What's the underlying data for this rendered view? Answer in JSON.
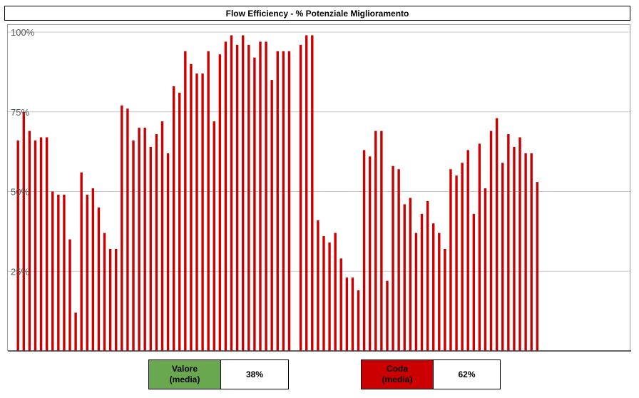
{
  "chart_data": {
    "type": "bar",
    "title": "Flow Efficiency - % Potenziale Miglioramento",
    "ylim": [
      0,
      100
    ],
    "y_ticks": [
      {
        "value": 100,
        "label": "100%"
      },
      {
        "value": 75,
        "label": "75%"
      },
      {
        "value": 50,
        "label": "50%"
      },
      {
        "value": 25,
        "label": "25%"
      }
    ],
    "grid": true,
    "bar_color": "#cc0000",
    "values": [
      66,
      75,
      69,
      66,
      67,
      67,
      50,
      49,
      49,
      35,
      12,
      56,
      49,
      51,
      45,
      37,
      32,
      32,
      77,
      76,
      66,
      70,
      70,
      64,
      68,
      72,
      62,
      83,
      81,
      94,
      90,
      87,
      87,
      94,
      72,
      93,
      97,
      99,
      96,
      99,
      96,
      92,
      97,
      97,
      85,
      94,
      94,
      94,
      null,
      96,
      99,
      99,
      41,
      36,
      34,
      37,
      29,
      23,
      23,
      19,
      63,
      61,
      69,
      69,
      22,
      58,
      57,
      46,
      48,
      37,
      43,
      47,
      40,
      37,
      32,
      57,
      55,
      59,
      63,
      43,
      65,
      51,
      69,
      73,
      59,
      68,
      64,
      67,
      62,
      62,
      53
    ]
  },
  "legend": {
    "valore": {
      "label": "Valore\n(media)",
      "value": "38%",
      "color": "#6aa84f"
    },
    "coda": {
      "label": "Coda\n(media)",
      "value": "62%",
      "color": "#cc0000"
    }
  }
}
